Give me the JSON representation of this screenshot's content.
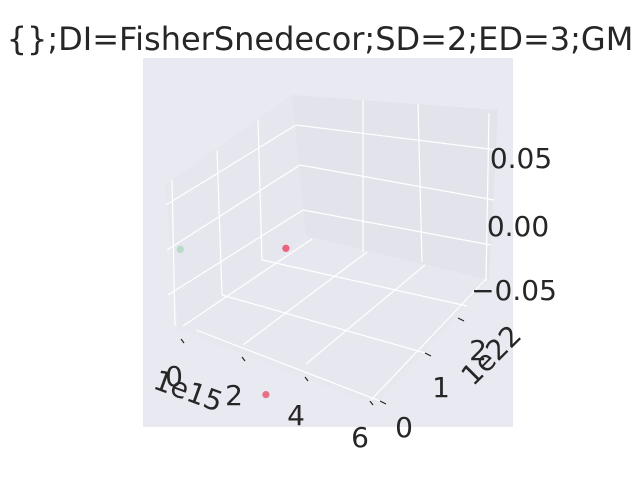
{
  "chart_data": {
    "type": "scatter",
    "projection": "3d",
    "title": "{};DI=FisherSnedecor;SD=2;ED=3;GM",
    "xlabel": "",
    "ylabel": "",
    "zlabel": "",
    "x_axis": {
      "ticks": [
        "0",
        "2",
        "4",
        "6"
      ],
      "offset": "1e15"
    },
    "y_axis": {
      "ticks": [
        "0",
        "1",
        "2"
      ],
      "offset": "1e22"
    },
    "z_axis": {
      "ticks": [
        "−0.05",
        "0.00",
        "0.05"
      ]
    },
    "grid": true,
    "legend": "none",
    "points": [
      {
        "x": 0.0,
        "y": 2.6e+22,
        "z": 0.0,
        "color": "#e8637d"
      },
      {
        "x": 0.0,
        "y": 2.6e+22,
        "z": 0.0,
        "color": "#e8637d"
      },
      {
        "x": 5000000000000000.0,
        "y": 9e+21,
        "z": 0.0,
        "color": "#e8637d"
      },
      {
        "x": 500000000000000.0,
        "y": 0.0,
        "z": 0.08,
        "color": "#8fd3a6"
      }
    ],
    "colors": {
      "pane": "#eaeaf2",
      "axes_background": "#e9e9f1",
      "grid": "#ffffff",
      "text": "#262626"
    }
  }
}
